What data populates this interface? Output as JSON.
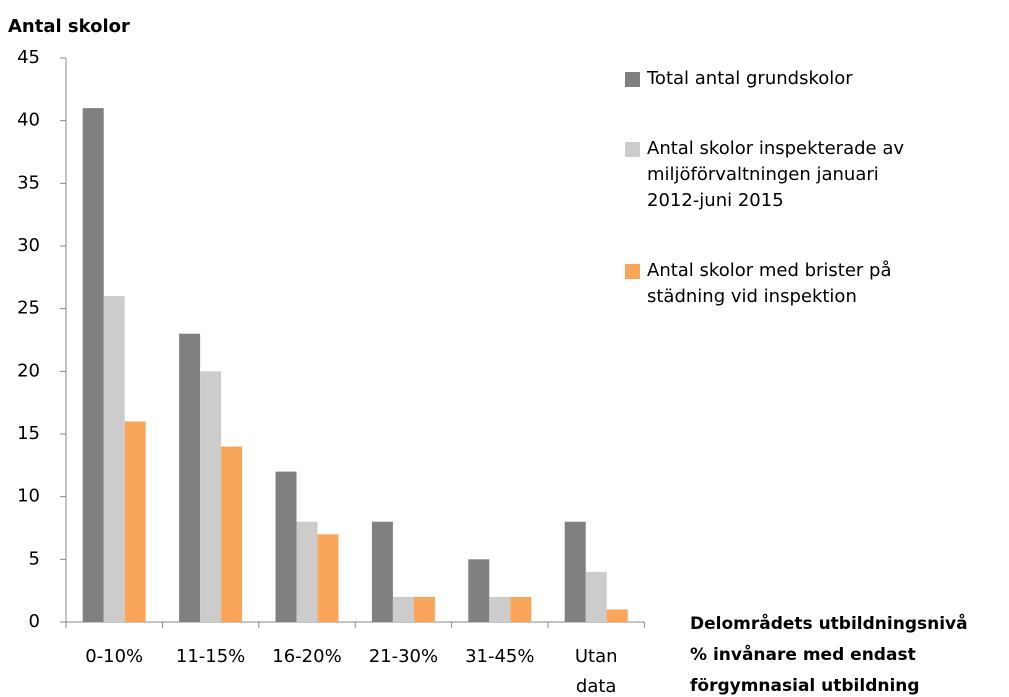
{
  "chart_data": {
    "type": "bar",
    "y_label": "Antal skolor",
    "x_label": [
      "Delområdets utbildningsnivå",
      "% invånare med endast",
      "förgymnasial utbildning"
    ],
    "categories": [
      "0-10%",
      "11-15%",
      "16-20%",
      "21-30%",
      "31-45%",
      "Utan data"
    ],
    "series": [
      {
        "name": "Total antal grundskolor",
        "color": "#808080",
        "values": [
          41,
          23,
          12,
          8,
          5,
          8
        ]
      },
      {
        "name": "Antal skolor inspekterade av miljöförvaltningen januari 2012-juni 2015",
        "color": "#cccccc",
        "values": [
          26,
          20,
          8,
          2,
          2,
          4
        ]
      },
      {
        "name": "Antal skolor med brister på städning vid inspektion",
        "color": "#f9a65a",
        "values": [
          16,
          14,
          7,
          2,
          2,
          1
        ]
      }
    ],
    "ylim": [
      0,
      45
    ],
    "yticks": [
      0,
      5,
      10,
      15,
      20,
      25,
      30,
      35,
      40,
      45
    ],
    "grid": false,
    "legend": "right"
  }
}
